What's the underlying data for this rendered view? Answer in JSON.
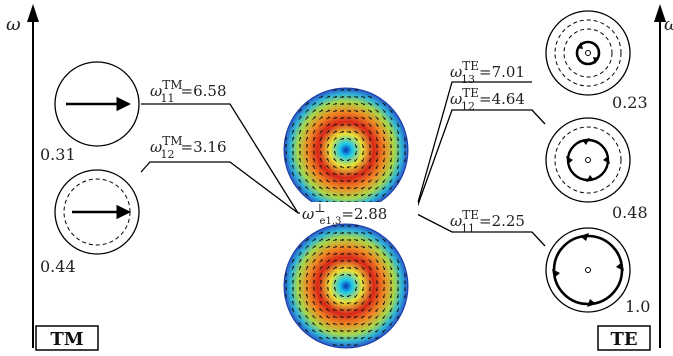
{
  "axis": {
    "left_label": "ω",
    "right_label": "ω"
  },
  "corner_labels": {
    "left": "TM",
    "right": "TE"
  },
  "center_mode": {
    "symbol": "ω",
    "sup": "⊥",
    "sub": "e1,3",
    "value": "=2.88"
  },
  "tm_modes": [
    {
      "symbol": "ω",
      "sup": "TM",
      "sub": "11",
      "value": "=6.58",
      "coeff": "0.31"
    },
    {
      "symbol": "ω",
      "sup": "TM",
      "sub": "12",
      "value": "=3.16",
      "coeff": "0.44"
    }
  ],
  "te_modes": [
    {
      "symbol": "ω",
      "sup": "TE",
      "sub": "13",
      "value": "=7.01",
      "coeff": "0.23"
    },
    {
      "symbol": "ω",
      "sup": "TE",
      "sub": "12",
      "value": "=4.64",
      "coeff": "0.48"
    },
    {
      "symbol": "ω",
      "sup": "TE",
      "sub": "11",
      "value": "=2.25",
      "coeff": "1.0"
    }
  ],
  "colors": {
    "line": "#000000",
    "field_hot": "#cc1a12",
    "field_cold": "#1f5fd0",
    "center": "#13c6e8"
  }
}
